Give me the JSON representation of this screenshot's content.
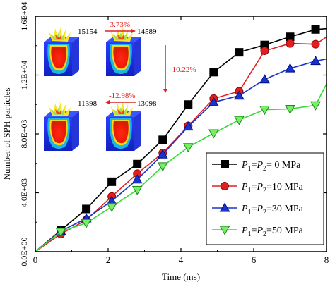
{
  "chart_data": {
    "type": "line",
    "title": "",
    "xlabel": "Time (ms)",
    "ylabel": "Number of SPH particles",
    "xlim": [
      0,
      8
    ],
    "ylim": [
      0,
      16000
    ],
    "xticks": [
      0,
      2,
      4,
      6,
      8
    ],
    "yticks": [
      0,
      4000,
      8000,
      12000,
      16000
    ],
    "ytick_labels": [
      "0.0E+00",
      "4.0E+03",
      "8.0E+03",
      "1.2E+04",
      "1.6E+04"
    ],
    "grid": false,
    "legend_position": "bottom-right",
    "series": [
      {
        "name": "P1=P2= 0 MPa",
        "legend_parts": [
          "P",
          "1",
          "=P",
          "2",
          "= 0 MPa"
        ],
        "color": "#000000",
        "fill": "#000000",
        "marker": "square",
        "x": [
          0,
          0.7,
          1.4,
          2.1,
          2.8,
          3.5,
          4.2,
          4.9,
          5.6,
          6.3,
          7.0,
          7.7,
          8.0
        ],
        "y": [
          0,
          1450,
          2900,
          4750,
          5950,
          7600,
          10000,
          12200,
          13550,
          14050,
          14600,
          15100,
          15154
        ]
      },
      {
        "name": "P1=P2=10 MPa",
        "legend_parts": [
          "P",
          "1",
          "=P",
          "2",
          "=10 MPa"
        ],
        "color": "#e02020",
        "fill": "#e02020",
        "marker": "circle",
        "x": [
          0,
          0.7,
          1.4,
          2.1,
          2.8,
          3.5,
          4.2,
          4.9,
          5.6,
          6.3,
          7.0,
          7.7,
          8.0
        ],
        "y": [
          0,
          1200,
          2150,
          3750,
          5300,
          6700,
          8550,
          10400,
          10900,
          13650,
          14150,
          14100,
          14589
        ]
      },
      {
        "name": "P1=P2=30 MPa",
        "legend_parts": [
          "P",
          "1",
          "=P",
          "2",
          "=30 MPa"
        ],
        "color": "#1a33cc",
        "fill": "#1a33cc",
        "marker": "triangle-up",
        "x": [
          0,
          0.7,
          1.4,
          2.1,
          2.8,
          3.5,
          4.2,
          4.9,
          5.6,
          6.3,
          7.0,
          7.7,
          8.0
        ],
        "y": [
          0,
          1400,
          2250,
          3450,
          4900,
          6600,
          8500,
          10150,
          10600,
          11700,
          12450,
          12950,
          13098
        ]
      },
      {
        "name": "P1=P2=50 MPa",
        "legend_parts": [
          "P",
          "1",
          "=P",
          "2",
          "=50 MPa"
        ],
        "color": "#33dd33",
        "fill": "#77ee66",
        "marker": "triangle-down",
        "x": [
          0,
          0.7,
          1.4,
          2.1,
          2.8,
          3.5,
          4.2,
          4.9,
          5.6,
          6.3,
          7.0,
          7.7,
          8.0
        ],
        "y": [
          0,
          1350,
          1950,
          3050,
          4200,
          5800,
          7100,
          8050,
          8950,
          9650,
          9700,
          9950,
          11398
        ]
      }
    ],
    "annotations": {
      "values": [
        "15154",
        "14589",
        "13098",
        "11398"
      ],
      "changes": [
        "-3.73%",
        "-10.22%",
        "-12.98%"
      ],
      "change_color": "#e02020"
    }
  }
}
